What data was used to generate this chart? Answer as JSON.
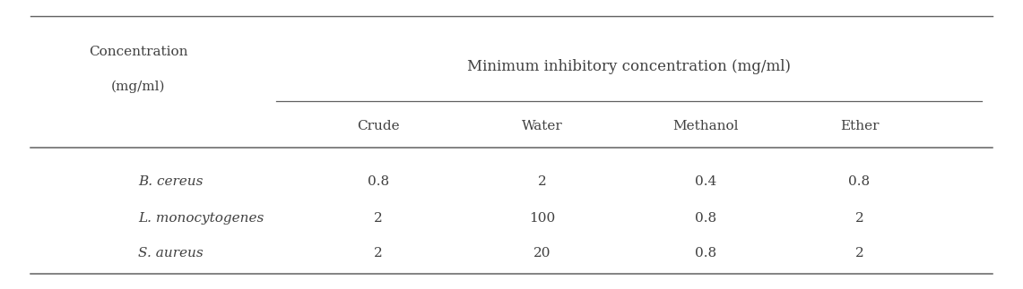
{
  "col_header_top": "Minimum inhibitory concentration (mg/ml)",
  "col0_label_line1": "Concentration",
  "col0_label_line2": "(mg/ml)",
  "sub_headers": [
    "Crude",
    "Water",
    "Methanol",
    "Ether"
  ],
  "rows": [
    [
      "B. cereus",
      "0.8",
      "2",
      "0.4",
      "0.8"
    ],
    [
      "L. monocytogenes",
      "2",
      "100",
      "0.8",
      "2"
    ],
    [
      "S. aureus",
      "2",
      "20",
      "0.8",
      "2"
    ]
  ],
  "bg_color": "#ffffff",
  "text_color": "#404040",
  "line_color": "#606060",
  "fontsize_main_header": 12,
  "fontsize_sub_header": 11,
  "fontsize_data": 11,
  "fig_width": 11.41,
  "fig_height": 3.23,
  "dpi": 100
}
